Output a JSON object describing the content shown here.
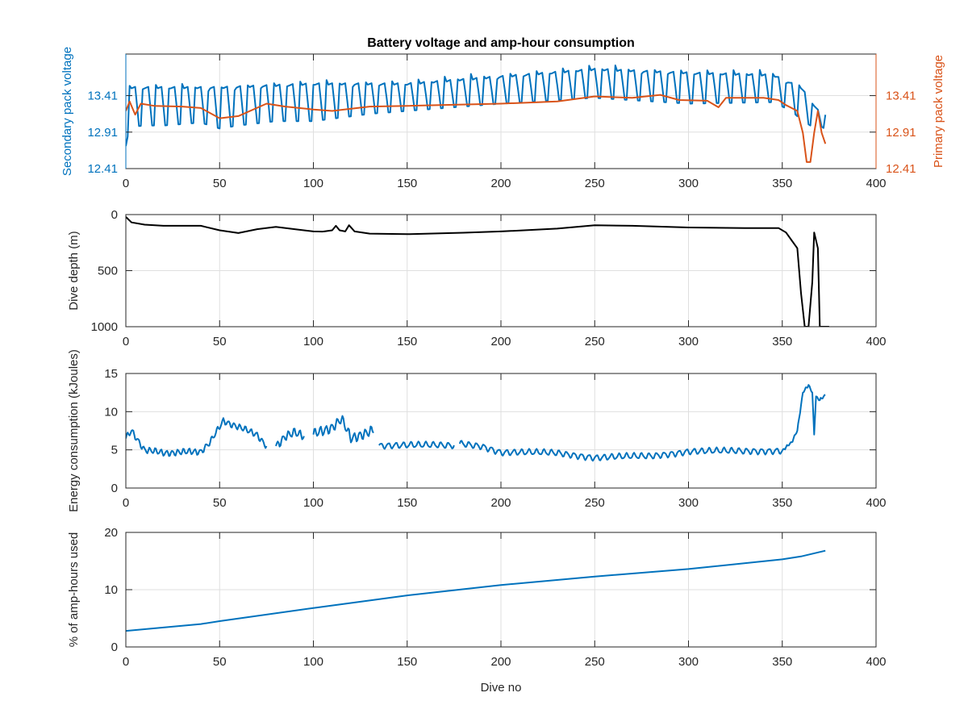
{
  "figure_title": "Battery voltage and amp-hour consumption",
  "colors": {
    "blue": "#0072BD",
    "orange": "#D95319",
    "black": "#000000",
    "grid": "#DFDFDF",
    "axis": "#262626"
  },
  "chart_data": [
    {
      "type": "line",
      "title": "Battery voltage and amp-hour consumption",
      "xlabel": "",
      "ylabel": "Secondary pack voltage",
      "ylabel_right": "Primary pack voltage",
      "xlim": [
        0,
        400
      ],
      "ylim": [
        12.41,
        13.98
      ],
      "ylim_right": [
        12.41,
        13.98
      ],
      "x_ticks": [
        0,
        50,
        100,
        150,
        200,
        250,
        300,
        350,
        400
      ],
      "y_ticks": [
        12.41,
        12.91,
        13.41
      ],
      "y_ticks_right": [
        12.41,
        12.91,
        13.41
      ],
      "grid": true,
      "series": [
        {
          "name": "Secondary pack voltage",
          "axis": "left",
          "color": "#0072BD",
          "style": "oscillating",
          "base": [
            [
              0,
              12.72
            ],
            [
              2,
              12.98
            ],
            [
              10,
              13.0
            ],
            [
              20,
              13.0
            ],
            [
              40,
              13.04
            ],
            [
              50,
              12.96
            ],
            [
              60,
              13.0
            ],
            [
              80,
              13.06
            ],
            [
              100,
              13.06
            ],
            [
              130,
              13.16
            ],
            [
              150,
              13.2
            ],
            [
              200,
              13.3
            ],
            [
              250,
              13.38
            ],
            [
              300,
              13.3
            ],
            [
              345,
              13.32
            ],
            [
              355,
              13.2
            ],
            [
              360,
              13.08
            ],
            [
              365,
              13.0
            ],
            [
              370,
              13.0
            ],
            [
              373,
              12.95
            ]
          ],
          "peak": [
            [
              0,
              13.55
            ],
            [
              50,
              13.55
            ],
            [
              100,
              13.6
            ],
            [
              150,
              13.6
            ],
            [
              200,
              13.7
            ],
            [
              250,
              13.8
            ],
            [
              300,
              13.75
            ],
            [
              345,
              13.72
            ],
            [
              360,
              13.55
            ],
            [
              373,
              13.1
            ]
          ],
          "period": 7
        },
        {
          "name": "Primary pack voltage",
          "axis": "right",
          "color": "#D95319",
          "style": "line",
          "points": [
            [
              0,
              13.2
            ],
            [
              2,
              13.33
            ],
            [
              5,
              13.15
            ],
            [
              8,
              13.3
            ],
            [
              15,
              13.27
            ],
            [
              30,
              13.26
            ],
            [
              40,
              13.24
            ],
            [
              50,
              13.1
            ],
            [
              60,
              13.13
            ],
            [
              75,
              13.3
            ],
            [
              85,
              13.26
            ],
            [
              100,
              13.22
            ],
            [
              110,
              13.2
            ],
            [
              130,
              13.26
            ],
            [
              150,
              13.27
            ],
            [
              200,
              13.3
            ],
            [
              230,
              13.33
            ],
            [
              250,
              13.4
            ],
            [
              270,
              13.38
            ],
            [
              285,
              13.42
            ],
            [
              295,
              13.35
            ],
            [
              310,
              13.34
            ],
            [
              316,
              13.25
            ],
            [
              320,
              13.38
            ],
            [
              340,
              13.38
            ],
            [
              348,
              13.35
            ],
            [
              352,
              13.28
            ],
            [
              358,
              13.2
            ],
            [
              361,
              12.9
            ],
            [
              363,
              12.5
            ],
            [
              365,
              12.5
            ],
            [
              367,
              12.9
            ],
            [
              369,
              13.2
            ],
            [
              371,
              12.9
            ],
            [
              373,
              12.75
            ]
          ]
        }
      ]
    },
    {
      "type": "line",
      "xlabel": "",
      "ylabel": "Dive depth (m)",
      "xlim": [
        0,
        400
      ],
      "ylim": [
        1000,
        0
      ],
      "y_reversed": true,
      "x_ticks": [
        0,
        50,
        100,
        150,
        200,
        250,
        300,
        350,
        400
      ],
      "y_ticks": [
        0,
        500,
        1000
      ],
      "grid": true,
      "series": [
        {
          "color": "#000000",
          "segments": [
            [
              [
                0,
                20
              ],
              [
                3,
                70
              ],
              [
                10,
                90
              ],
              [
                20,
                100
              ],
              [
                40,
                100
              ],
              [
                50,
                140
              ],
              [
                60,
                165
              ],
              [
                70,
                130
              ],
              [
                80,
                110
              ],
              [
                90,
                130
              ],
              [
                100,
                150
              ],
              [
                105,
                152
              ]
            ],
            [
              [
                105,
                152
              ],
              [
                110,
                140
              ],
              [
                112,
                100
              ],
              [
                114,
                140
              ],
              [
                117,
                150
              ],
              [
                119,
                95
              ],
              [
                122,
                150
              ],
              [
                130,
                170
              ],
              [
                150,
                175
              ],
              [
                180,
                162
              ],
              [
                200,
                150
              ],
              [
                230,
                125
              ],
              [
                250,
                95
              ],
              [
                270,
                100
              ],
              [
                300,
                115
              ],
              [
                330,
                120
              ],
              [
                348,
                120
              ],
              [
                352,
                160
              ],
              [
                355,
                230
              ],
              [
                358,
                300
              ],
              [
                360,
                700
              ],
              [
                362,
                1000
              ],
              [
                364,
                1000
              ],
              [
                366,
                600
              ],
              [
                367,
                160
              ],
              [
                369,
                300
              ],
              [
                370,
                1000
              ],
              [
                375,
                1000
              ]
            ]
          ]
        }
      ]
    },
    {
      "type": "line",
      "xlabel": "",
      "ylabel": "Energy consumption (kJoules)",
      "xlim": [
        0,
        400
      ],
      "ylim": [
        0,
        15
      ],
      "x_ticks": [
        0,
        50,
        100,
        150,
        200,
        250,
        300,
        350,
        400
      ],
      "y_ticks": [
        0,
        5,
        10,
        15
      ],
      "grid": true,
      "series": [
        {
          "color": "#0072BD",
          "segments": [
            {
              "range": [
                0,
                75
              ],
              "base": [
                [
                  0,
                  6.5
                ],
                [
                  3,
                  7.5
                ],
                [
                  10,
                  5.0
                ],
                [
                  20,
                  4.6
                ],
                [
                  40,
                  4.8
                ],
                [
                  45,
                  6.0
                ],
                [
                  52,
                  8.8
                ],
                [
                  60,
                  8.0
                ],
                [
                  70,
                  7.0
                ],
                [
                  75,
                  5.5
                ]
              ],
              "amp": 0.5,
              "period": 3
            },
            {
              "range": [
                80,
                95
              ],
              "base": [
                [
                  80,
                  5.5
                ],
                [
                  85,
                  6.8
                ],
                [
                  90,
                  7.2
                ],
                [
                  95,
                  6.8
                ]
              ],
              "amp": 0.7,
              "period": 3
            },
            {
              "range": [
                100,
                132
              ],
              "base": [
                [
                  100,
                  7.0
                ],
                [
                  110,
                  8.0
                ],
                [
                  115,
                  9.0
                ],
                [
                  120,
                  6.5
                ],
                [
                  125,
                  7.0
                ],
                [
                  132,
                  7.5
                ]
              ],
              "amp": 0.8,
              "period": 3
            },
            {
              "range": [
                135,
                175
              ],
              "base": [
                [
                  135,
                  5.6
                ],
                [
                  175,
                  5.6
                ]
              ],
              "amp": 0.5,
              "period": 4
            },
            {
              "range": [
                178,
                350
              ],
              "base": [
                [
                  178,
                  5.8
                ],
                [
                  190,
                  5.5
                ],
                [
                  200,
                  4.7
                ],
                [
                  230,
                  4.6
                ],
                [
                  250,
                  4.0
                ],
                [
                  280,
                  4.2
                ],
                [
                  300,
                  4.8
                ],
                [
                  350,
                  4.9
                ]
              ],
              "amp": 0.5,
              "period": 4
            },
            {
              "range": [
                350,
                373
              ],
              "base": [
                [
                  350,
                  4.9
                ],
                [
                  355,
                  6.0
                ],
                [
                  358,
                  7.5
                ],
                [
                  361,
                  12.5
                ],
                [
                  364,
                  13.5
                ],
                [
                  366,
                  12.5
                ],
                [
                  367,
                  7.0
                ],
                [
                  368,
                  12.0
                ],
                [
                  370,
                  11.5
                ],
                [
                  373,
                  12.2
                ]
              ],
              "amp": 0.2,
              "period": 2
            }
          ]
        }
      ]
    },
    {
      "type": "line",
      "xlabel": "Dive no",
      "ylabel": "% of amp-hours used",
      "xlim": [
        0,
        400
      ],
      "ylim": [
        0,
        20
      ],
      "x_ticks": [
        0,
        50,
        100,
        150,
        200,
        250,
        300,
        350,
        400
      ],
      "y_ticks": [
        0,
        10,
        20
      ],
      "grid": true,
      "series": [
        {
          "color": "#0072BD",
          "points": [
            [
              0,
              2.8
            ],
            [
              20,
              3.4
            ],
            [
              40,
              4.0
            ],
            [
              50,
              4.5
            ],
            [
              100,
              6.8
            ],
            [
              150,
              9.0
            ],
            [
              200,
              10.8
            ],
            [
              250,
              12.3
            ],
            [
              300,
              13.6
            ],
            [
              350,
              15.3
            ],
            [
              360,
              15.8
            ],
            [
              373,
              16.8
            ]
          ]
        }
      ]
    }
  ]
}
